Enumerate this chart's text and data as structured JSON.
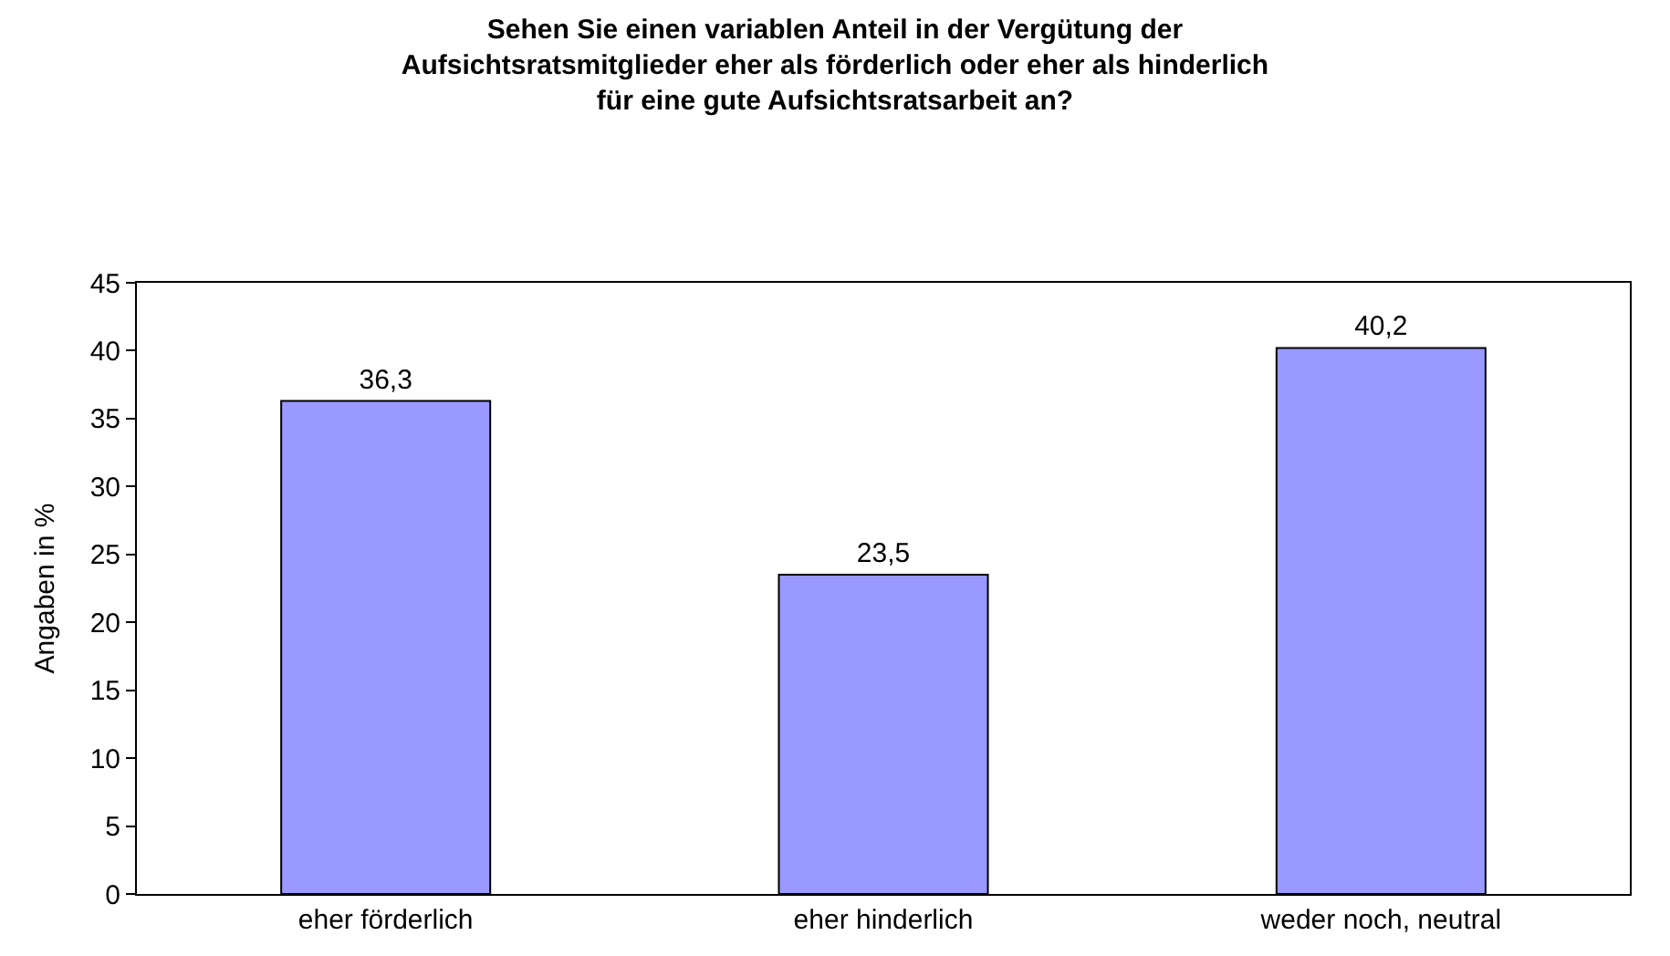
{
  "chart_data": {
    "type": "bar",
    "title": "Sehen Sie einen variablen Anteil in der Vergütung der\nAufsichtsratsmitglieder eher als förderlich oder eher als hinderlich\nfür eine gute Aufsichtsratsarbeit an?",
    "ylabel": "Angaben in %",
    "categories": [
      "eher förderlich",
      "eher hinderlich",
      "weder noch, neutral"
    ],
    "values": [
      36.3,
      23.5,
      40.2
    ],
    "value_labels": [
      "36,3",
      "23,5",
      "40,2"
    ],
    "color": "#9999ff",
    "ylim": [
      0,
      45
    ],
    "yticks": [
      0,
      5,
      10,
      15,
      20,
      25,
      30,
      35,
      40,
      45
    ],
    "grid": false
  }
}
